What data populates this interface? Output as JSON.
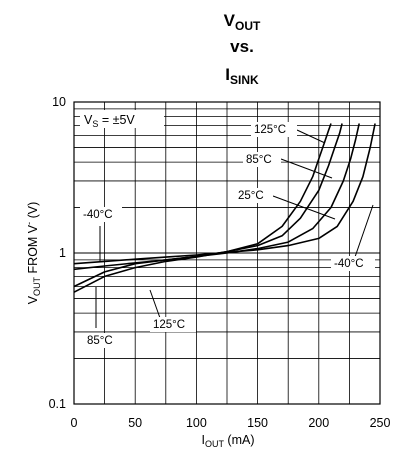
{
  "title": {
    "line1_main": "V",
    "line1_sub": "OUT",
    "line2": "vs.",
    "line3_main": "I",
    "line3_sub": "SINK"
  },
  "xlabel": {
    "main": "I",
    "sub": "OUT",
    "rest": " (mA)"
  },
  "ylabel": "Vₒᵤₜ FROM V⁻ (V)",
  "ylabel_parts": {
    "main": "V",
    "sub": "OUT",
    "rest": " FROM V",
    "sup": "-",
    "unit": " (V)"
  },
  "condition": {
    "main": "V",
    "sub": "S",
    "rest": " = ±5V"
  },
  "colors": {
    "line": "#000000",
    "grid": "#000000",
    "background": "#ffffff"
  },
  "chart_data": {
    "type": "line",
    "xlim": [
      0,
      250
    ],
    "ylim": [
      0.1,
      10
    ],
    "yscale": "log",
    "grid": true,
    "xticks": [
      "0",
      "50",
      "100",
      "150",
      "200",
      "250"
    ],
    "yticks": [
      "0.1",
      "1",
      "10"
    ],
    "series": [
      {
        "name": "125°C",
        "x": [
          0,
          25,
          50,
          75,
          100,
          125,
          150,
          170,
          185,
          195,
          200,
          205,
          208,
          210
        ],
        "y": [
          0.6,
          0.75,
          0.85,
          0.9,
          0.95,
          1.02,
          1.15,
          1.5,
          2.2,
          3.2,
          4.2,
          5.5,
          6.5,
          7.2
        ]
      },
      {
        "name": "85°C",
        "x": [
          0,
          25,
          50,
          75,
          100,
          125,
          150,
          170,
          185,
          200,
          208,
          213,
          217,
          219
        ],
        "y": [
          0.55,
          0.7,
          0.8,
          0.88,
          0.94,
          1.02,
          1.12,
          1.3,
          1.7,
          2.6,
          3.8,
          5.0,
          6.2,
          7.2
        ]
      },
      {
        "name": "25°C",
        "x": [
          0,
          25,
          50,
          75,
          100,
          125,
          150,
          175,
          195,
          210,
          220,
          226,
          230,
          233
        ],
        "y": [
          0.78,
          0.82,
          0.86,
          0.9,
          0.95,
          1.0,
          1.07,
          1.18,
          1.45,
          2.0,
          3.0,
          4.2,
          5.6,
          7.2
        ]
      },
      {
        "name": "-40°C",
        "x": [
          0,
          25,
          50,
          75,
          100,
          125,
          150,
          175,
          200,
          215,
          228,
          236,
          242,
          246
        ],
        "y": [
          0.85,
          0.88,
          0.91,
          0.94,
          0.97,
          1.01,
          1.05,
          1.12,
          1.25,
          1.5,
          2.2,
          3.2,
          5.0,
          7.2
        ]
      }
    ],
    "annotations": [
      {
        "text": "125°C",
        "series": "125°C"
      },
      {
        "text": "85°C",
        "series": "85°C"
      },
      {
        "text": "25°C",
        "series": "25°C"
      },
      {
        "text": "-40°C",
        "series": "-40°C"
      },
      {
        "text": "-40°C",
        "series": "-40°C"
      },
      {
        "text": "125°C",
        "series": "125°C"
      },
      {
        "text": "85°C",
        "series": "85°C"
      }
    ]
  }
}
